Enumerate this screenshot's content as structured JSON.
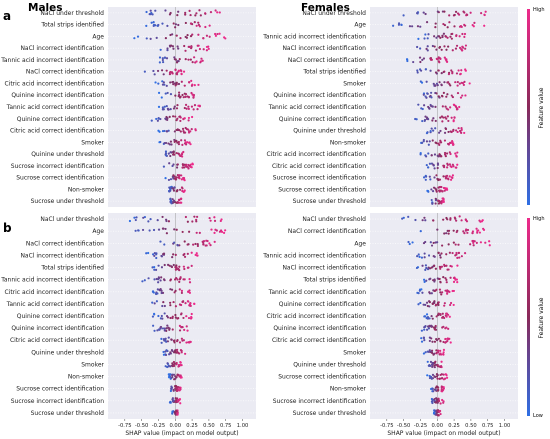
{
  "labels": {
    "panel_a": "a",
    "panel_b": "b",
    "males": "Males",
    "females": "Females",
    "colorbar_title": "Feature value",
    "colorbar_high": "High",
    "colorbar_low": "Low"
  },
  "colors": {
    "low": "#2f6fe4",
    "high": "#ee2a8b",
    "mid": "#8a2a5a",
    "plot_bg": "#ebebf3",
    "grid": "#ffffff"
  },
  "chart_data": [
    {
      "id": "a-males",
      "type": "scatter",
      "subtype": "shap-beeswarm",
      "title": "Males",
      "features": [
        "NaCl under threshold",
        "Total strips identified",
        "Age",
        "NaCl incorrect identification",
        "Tannic acid incorrect identification",
        "NaCl correct identification",
        "Citric acid incorrect identification",
        "Quinine incorrect identification",
        "Tannic acid correct identification",
        "Quinine correct identification",
        "Citric acid correct identification",
        "Smoker",
        "Quinine under threshold",
        "Sucrose incorrect identification",
        "Sucrose correct identification",
        "Non-smoker",
        "Sucrose under threshold"
      ],
      "xlim": [
        -1.0,
        1.2
      ],
      "spread": [
        [
          -0.55,
          0.75
        ],
        [
          -0.45,
          0.55
        ],
        [
          -0.7,
          0.75
        ],
        [
          -0.35,
          0.5
        ],
        [
          -0.3,
          0.45
        ],
        [
          -0.5,
          0.15
        ],
        [
          -0.3,
          0.35
        ],
        [
          -0.25,
          0.4
        ],
        [
          -0.3,
          0.4
        ],
        [
          -0.35,
          0.25
        ],
        [
          -0.25,
          0.35
        ],
        [
          -0.25,
          0.25
        ],
        [
          -0.2,
          0.15
        ],
        [
          -0.2,
          0.3
        ],
        [
          -0.15,
          0.15
        ],
        [
          -0.1,
          0.15
        ],
        [
          -0.1,
          0.1
        ]
      ],
      "xlabel": "",
      "xticks": []
    },
    {
      "id": "a-females",
      "type": "scatter",
      "subtype": "shap-beeswarm",
      "title": "Females",
      "features": [
        "NaCl under threshold",
        "Age",
        "Tannic acid incorrect identification",
        "NaCl incorrect identification",
        "NaCl correct identification",
        "Total strips identified",
        "Smoker",
        "Quinine incorrect identification",
        "Tannic acid correct identification",
        "Quinine correct identification",
        "Quinine under threshold",
        "Non-smoker",
        "Citric acid incorrect identification",
        "Citric acid correct identification",
        "Sucrose incorrect identification",
        "Sucrose correct identification",
        "Sucrose under threshold"
      ],
      "xlim": [
        -1.0,
        1.2
      ],
      "spread": [
        [
          -0.55,
          0.75
        ],
        [
          -0.7,
          0.7
        ],
        [
          -0.3,
          0.45
        ],
        [
          -0.45,
          0.55
        ],
        [
          -0.5,
          0.15
        ],
        [
          -0.35,
          0.45
        ],
        [
          -0.25,
          0.5
        ],
        [
          -0.3,
          0.45
        ],
        [
          -0.35,
          0.35
        ],
        [
          -0.35,
          0.3
        ],
        [
          -0.2,
          0.45
        ],
        [
          -0.25,
          0.25
        ],
        [
          -0.25,
          0.3
        ],
        [
          -0.2,
          0.3
        ],
        [
          -0.2,
          0.25
        ],
        [
          -0.15,
          0.15
        ],
        [
          -0.1,
          0.1
        ]
      ],
      "xlabel": "",
      "xticks": []
    },
    {
      "id": "b-males",
      "type": "scatter",
      "subtype": "shap-beeswarm",
      "title": "",
      "features": [
        "NaCl under threshold",
        "Age",
        "NaCl correct identification",
        "NaCl incorrect identification",
        "Total strips identified",
        "Tannic acid incorrect identification",
        "Citric acid incorrect identification",
        "Tannic acid correct identification",
        "Quinine correct identification",
        "Quinine incorrect identification",
        "Citric acid correct identification",
        "Quinine under threshold",
        "Smoker",
        "Non-smoker",
        "Sucrose correct identification",
        "Sucrose incorrect identification",
        "Sucrose under threshold"
      ],
      "xlim": [
        -1.0,
        1.2
      ],
      "spread": [
        [
          -0.7,
          0.7
        ],
        [
          -0.7,
          0.75
        ],
        [
          -0.25,
          0.6
        ],
        [
          -0.45,
          0.35
        ],
        [
          -0.4,
          0.3
        ],
        [
          -0.5,
          0.3
        ],
        [
          -0.4,
          0.25
        ],
        [
          -0.45,
          0.3
        ],
        [
          -0.35,
          0.25
        ],
        [
          -0.35,
          0.2
        ],
        [
          -0.25,
          0.25
        ],
        [
          -0.2,
          0.15
        ],
        [
          -0.15,
          0.1
        ],
        [
          -0.1,
          0.1
        ],
        [
          -0.08,
          0.08
        ],
        [
          -0.08,
          0.08
        ],
        [
          -0.05,
          0.05
        ]
      ],
      "xlabel": "SHAP value (impact on model output)",
      "xticks": [
        "-0.75",
        "-0.50",
        "-0.25",
        "0.00",
        "0.25",
        "0.50",
        "0.75",
        "1.00"
      ]
    },
    {
      "id": "b-females",
      "type": "scatter",
      "subtype": "shap-beeswarm",
      "title": "",
      "features": [
        "NaCl under threshold",
        "NaCl correct identification",
        "Age",
        "Tannic acid incorrect identification",
        "NaCl incorrect identification",
        "Total strips identified",
        "Tannic acid correct identification",
        "Quinine correct identification",
        "Citric acid incorrect identification",
        "Quinine incorrect identification",
        "Citric acid correct identification",
        "Smoker",
        "Quinine under threshold",
        "Sucrose correct identification",
        "Non-smoker",
        "Sucrose incorrect identification",
        "Sucrose under threshold"
      ],
      "xlim": [
        -1.0,
        1.2
      ],
      "spread": [
        [
          -0.7,
          0.7
        ],
        [
          -0.35,
          0.7
        ],
        [
          -0.55,
          0.8
        ],
        [
          -0.35,
          0.45
        ],
        [
          -0.35,
          0.3
        ],
        [
          -0.25,
          0.3
        ],
        [
          -0.3,
          0.25
        ],
        [
          -0.35,
          0.25
        ],
        [
          -0.2,
          0.2
        ],
        [
          -0.25,
          0.2
        ],
        [
          -0.25,
          0.2
        ],
        [
          -0.2,
          0.1
        ],
        [
          -0.15,
          0.1
        ],
        [
          -0.15,
          0.15
        ],
        [
          -0.1,
          0.1
        ],
        [
          -0.1,
          0.1
        ],
        [
          -0.05,
          0.05
        ]
      ],
      "xlabel": "SHAP value (impact on model output)",
      "xticks": [
        "-0.75",
        "-0.50",
        "-0.25",
        "0.00",
        "0.25",
        "0.50",
        "0.75",
        "1.00"
      ]
    }
  ]
}
